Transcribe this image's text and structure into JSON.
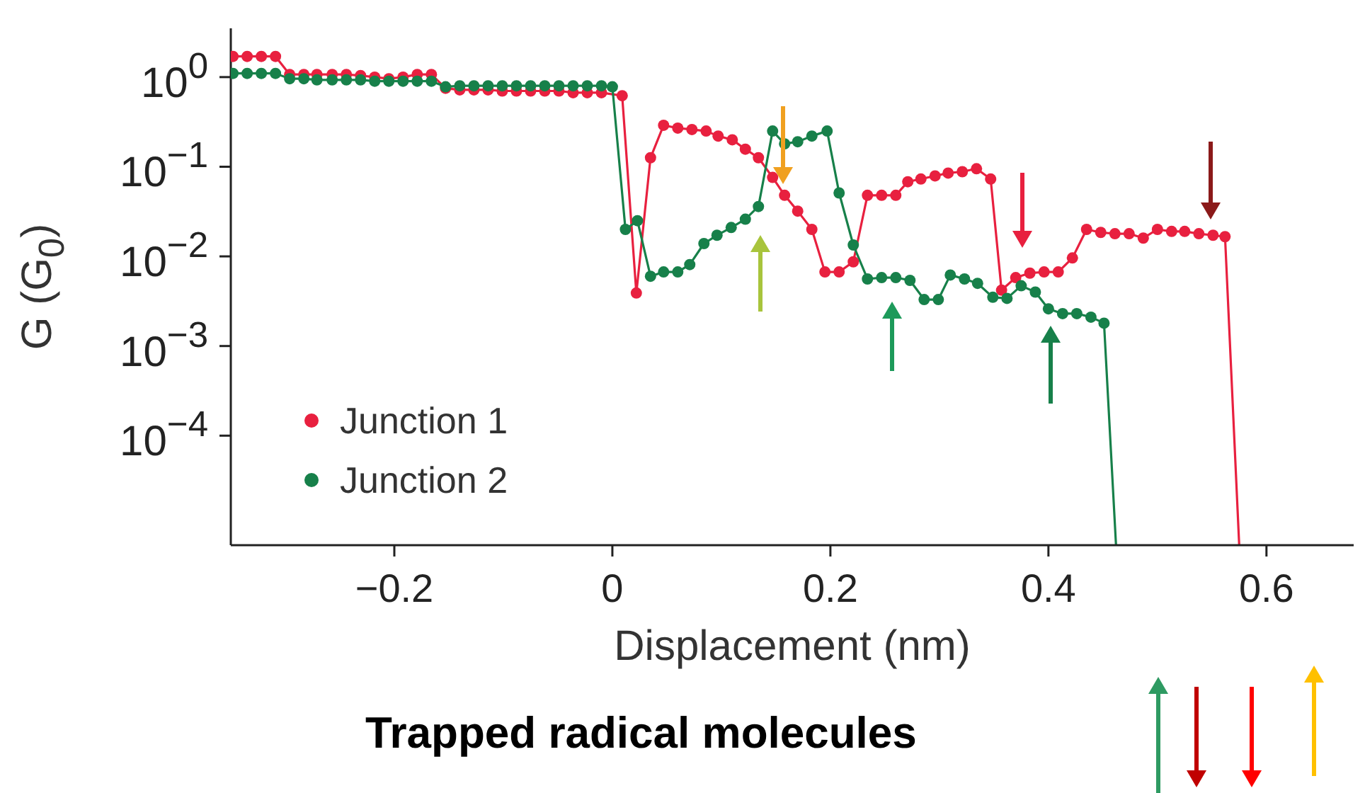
{
  "chart_data": {
    "type": "line",
    "xlabel": "Displacement (nm)",
    "ylabel": "G (G$_{0}$)",
    "xlim": [
      -0.35,
      0.68
    ],
    "xticks": [
      {
        "value": -0.2,
        "label": "−0.2"
      },
      0,
      0.2,
      0.4,
      0.6
    ],
    "ylim": [
      6e-06,
      3.5
    ],
    "yticks": [
      {
        "value": 1,
        "label": "10$^{0}$"
      },
      {
        "value": 0.1,
        "label": "10$^{−1}$"
      },
      {
        "value": 0.01,
        "label": "10$^{−2}$"
      },
      {
        "value": 0.001,
        "label": "10$^{−3}$"
      },
      {
        "value": 0.0001,
        "label": "10$^{−4}$"
      }
    ],
    "log": "y",
    "marker": "circle",
    "line_style": "solid",
    "legend": "bottom left",
    "annotations": [
      "Trapped radical molecules"
    ],
    "series": [
      {
        "name": "Junction 1",
        "color": "#e8203f",
        "x": [
          -0.348,
          -0.335,
          -0.322,
          -0.309,
          -0.296,
          -0.283,
          -0.271,
          -0.257,
          -0.244,
          -0.231,
          -0.218,
          -0.205,
          -0.192,
          -0.179,
          -0.166,
          -0.153,
          -0.14,
          -0.127,
          -0.114,
          -0.101,
          -0.088,
          -0.075,
          -0.062,
          -0.049,
          -0.036,
          -0.023,
          -0.01,
          0.009,
          0.022,
          0.035,
          0.047,
          0.06,
          0.073,
          0.086,
          0.097,
          0.11,
          0.122,
          0.134,
          0.147,
          0.158,
          0.17,
          0.183,
          0.195,
          0.208,
          0.221,
          0.234,
          0.247,
          0.26,
          0.271,
          0.283,
          0.296,
          0.308,
          0.321,
          0.334,
          0.347,
          0.357,
          0.37,
          0.383,
          0.396,
          0.409,
          0.422,
          0.435,
          0.448,
          0.461,
          0.474,
          0.487,
          0.5,
          0.513,
          0.525,
          0.538,
          0.551,
          0.562,
          0.575
        ],
        "values": [
          1.7,
          1.7,
          1.7,
          1.7,
          1.07,
          1.07,
          1.07,
          1.07,
          1.07,
          1.04,
          1.0,
          0.96,
          1.0,
          1.07,
          1.07,
          0.75,
          0.72,
          0.72,
          0.72,
          0.7,
          0.7,
          0.7,
          0.7,
          0.7,
          0.67,
          0.67,
          0.67,
          0.62,
          0.0039,
          0.126,
          0.29,
          0.27,
          0.26,
          0.25,
          0.22,
          0.2,
          0.157,
          0.126,
          0.076,
          0.048,
          0.032,
          0.02,
          0.0067,
          0.0067,
          0.0087,
          0.048,
          0.048,
          0.048,
          0.068,
          0.073,
          0.079,
          0.085,
          0.088,
          0.095,
          0.073,
          0.0042,
          0.0058,
          0.0065,
          0.0067,
          0.0067,
          0.0096,
          0.02,
          0.0185,
          0.0179,
          0.0179,
          0.016,
          0.02,
          0.019,
          0.019,
          0.0179,
          0.0172,
          0.0166,
          6e-06
        ]
      },
      {
        "name": "Junction 2",
        "color": "#17804a",
        "x": [
          -0.348,
          -0.335,
          -0.322,
          -0.309,
          -0.296,
          -0.283,
          -0.271,
          -0.257,
          -0.244,
          -0.231,
          -0.218,
          -0.205,
          -0.192,
          -0.179,
          -0.166,
          -0.153,
          -0.14,
          -0.127,
          -0.114,
          -0.101,
          -0.088,
          -0.075,
          -0.062,
          -0.049,
          -0.036,
          -0.023,
          -0.01,
          0,
          0.012,
          0.023,
          0.035,
          0.047,
          0.06,
          0.071,
          0.084,
          0.096,
          0.109,
          0.122,
          0.134,
          0.147,
          0.158,
          0.17,
          0.183,
          0.197,
          0.208,
          0.221,
          0.234,
          0.247,
          0.26,
          0.273,
          0.286,
          0.299,
          0.31,
          0.323,
          0.335,
          0.349,
          0.362,
          0.375,
          0.388,
          0.4,
          0.413,
          0.426,
          0.439,
          0.451,
          0.462
        ],
        "values": [
          1.1,
          1.1,
          1.1,
          1.1,
          0.96,
          0.96,
          0.93,
          0.93,
          0.93,
          0.93,
          0.9,
          0.9,
          0.9,
          0.9,
          0.9,
          0.78,
          0.8,
          0.8,
          0.8,
          0.8,
          0.8,
          0.8,
          0.8,
          0.8,
          0.8,
          0.8,
          0.8,
          0.78,
          0.02,
          0.025,
          0.006,
          0.0067,
          0.0067,
          0.0081,
          0.0139,
          0.0172,
          0.021,
          0.026,
          0.036,
          0.25,
          0.18,
          0.19,
          0.22,
          0.25,
          0.051,
          0.0134,
          0.0056,
          0.0058,
          0.0058,
          0.0054,
          0.0033,
          0.0033,
          0.0062,
          0.0056,
          0.005,
          0.0035,
          0.0034,
          0.0047,
          0.004,
          0.0026,
          0.0023,
          0.0023,
          0.0021,
          0.0018,
          6e-06
        ]
      }
    ]
  }
}
